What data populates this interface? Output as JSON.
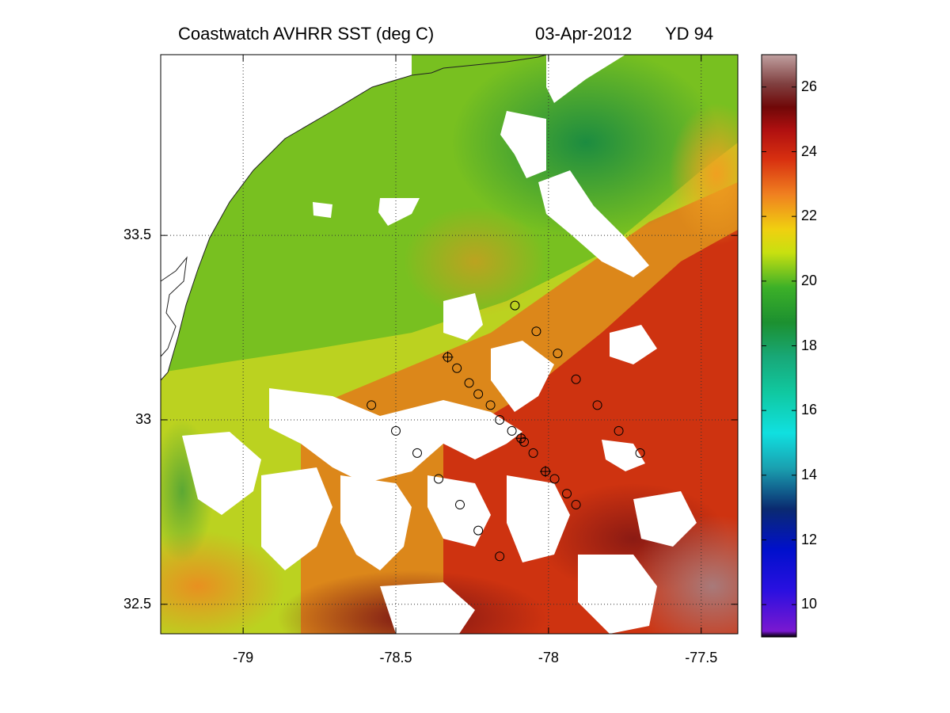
{
  "title": "Coastwatch   AVHRR   SST  (deg C)",
  "date": "03-Apr-2012",
  "yearday": "YD 94",
  "map": {
    "lon_range": [
      -79.27,
      -77.38
    ],
    "lat_range": [
      32.42,
      33.99
    ],
    "lon_ticks": [
      {
        "value": -79,
        "label": "-79"
      },
      {
        "value": -78.5,
        "label": "-78.5"
      },
      {
        "value": -78,
        "label": "-78"
      },
      {
        "value": -77.5,
        "label": "-77.5"
      }
    ],
    "lat_ticks": [
      {
        "value": 33.5,
        "label": "33.5"
      },
      {
        "value": 33,
        "label": "33"
      },
      {
        "value": 32.5,
        "label": "32.5"
      }
    ],
    "grid": true,
    "colorbar": {
      "min": 9,
      "max": 27,
      "ticks": [
        {
          "value": 10,
          "label": "10"
        },
        {
          "value": 12,
          "label": "12"
        },
        {
          "value": 14,
          "label": "14"
        },
        {
          "value": 16,
          "label": "16"
        },
        {
          "value": 18,
          "label": "18"
        },
        {
          "value": 20,
          "label": "20"
        },
        {
          "value": 22,
          "label": "22"
        },
        {
          "value": 24,
          "label": "24"
        },
        {
          "value": 26,
          "label": "26"
        }
      ]
    },
    "stations": [
      {
        "lon": -78.11,
        "lat": 33.31,
        "cross": false
      },
      {
        "lon": -78.04,
        "lat": 33.24,
        "cross": false
      },
      {
        "lon": -77.97,
        "lat": 33.18,
        "cross": false
      },
      {
        "lon": -78.33,
        "lat": 33.17,
        "cross": true
      },
      {
        "lon": -78.3,
        "lat": 33.14,
        "cross": false
      },
      {
        "lon": -78.26,
        "lat": 33.1,
        "cross": false
      },
      {
        "lon": -78.23,
        "lat": 33.07,
        "cross": false
      },
      {
        "lon": -78.19,
        "lat": 33.04,
        "cross": false
      },
      {
        "lon": -78.16,
        "lat": 33.0,
        "cross": false
      },
      {
        "lon": -78.12,
        "lat": 32.97,
        "cross": false
      },
      {
        "lon": -78.09,
        "lat": 32.95,
        "cross": true
      },
      {
        "lon": -78.08,
        "lat": 32.94,
        "cross": false
      },
      {
        "lon": -78.05,
        "lat": 32.91,
        "cross": false
      },
      {
        "lon": -78.01,
        "lat": 32.86,
        "cross": true
      },
      {
        "lon": -77.98,
        "lat": 32.84,
        "cross": false
      },
      {
        "lon": -77.94,
        "lat": 32.8,
        "cross": false
      },
      {
        "lon": -77.91,
        "lat": 32.77,
        "cross": false
      },
      {
        "lon": -77.91,
        "lat": 33.11,
        "cross": false
      },
      {
        "lon": -77.84,
        "lat": 33.04,
        "cross": false
      },
      {
        "lon": -77.77,
        "lat": 32.97,
        "cross": false
      },
      {
        "lon": -77.7,
        "lat": 32.91,
        "cross": false
      },
      {
        "lon": -78.58,
        "lat": 33.04,
        "cross": false
      },
      {
        "lon": -78.5,
        "lat": 32.97,
        "cross": false
      },
      {
        "lon": -78.43,
        "lat": 32.91,
        "cross": false
      },
      {
        "lon": -78.36,
        "lat": 32.84,
        "cross": false
      },
      {
        "lon": -78.29,
        "lat": 32.77,
        "cross": false
      },
      {
        "lon": -78.23,
        "lat": 32.7,
        "cross": false
      },
      {
        "lon": -78.16,
        "lat": 32.63,
        "cross": false
      }
    ]
  }
}
